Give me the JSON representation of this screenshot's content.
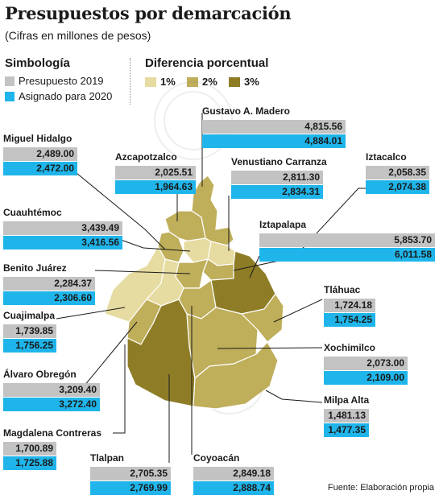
{
  "title": "Presupuestos por demarcación",
  "subtitle": "(Cifras en millones de pesos)",
  "legend": {
    "heading": "Simbología",
    "items": [
      {
        "label": "Presupuesto 2019",
        "color": "#c3c3c3"
      },
      {
        "label": "Asignado para 2020",
        "color": "#1fb5ea"
      }
    ]
  },
  "diff_legend": {
    "heading": "Diferencia porcentual",
    "items": [
      {
        "label": "1%",
        "color": "#e6dba0"
      },
      {
        "label": "2%",
        "color": "#bfae5a"
      },
      {
        "label": "3%",
        "color": "#8e7d26"
      }
    ]
  },
  "source": "Fuente: Elaboración propia",
  "chart_data": {
    "type": "bar",
    "title": "Presupuestos por demarcación",
    "unit": "millones de pesos",
    "categories": [
      "Gustavo A. Madero",
      "Miguel Hidalgo",
      "Azcapotzalco",
      "Venustiano Carranza",
      "Iztacalco",
      "Cuauhtémoc",
      "Iztapalapa",
      "Benito Juárez",
      "Tláhuac",
      "Cuajimalpa",
      "Xochimilco",
      "Álvaro Obregón",
      "Milpa Alta",
      "Magdalena Contreras",
      "Tlalpan",
      "Coyoacán"
    ],
    "series": [
      {
        "name": "Presupuesto 2019",
        "values": [
          "4,815.56",
          "2,489.00",
          "2,025.51",
          "2,811.30",
          "2,058.35",
          "3,439.49",
          "5,853.70",
          "2,284.37",
          "1,724.18",
          "1,739.85",
          "2,073.00",
          "3,209.40",
          "1,481.13",
          "1,700.89",
          "2,705.35",
          "2,849.18"
        ]
      },
      {
        "name": "Asignado para 2020",
        "values": [
          "4,884.01",
          "2,472.00",
          "1,964.63",
          "2,834.31",
          "2,074.38",
          "3,416.56",
          "6,011.58",
          "2,306.60",
          "1,754.25",
          "1,756.25",
          "2,109.00",
          "3,272.40",
          "1,477.35",
          "1,725.88",
          "2,769.99",
          "2,888.74"
        ]
      }
    ]
  }
}
